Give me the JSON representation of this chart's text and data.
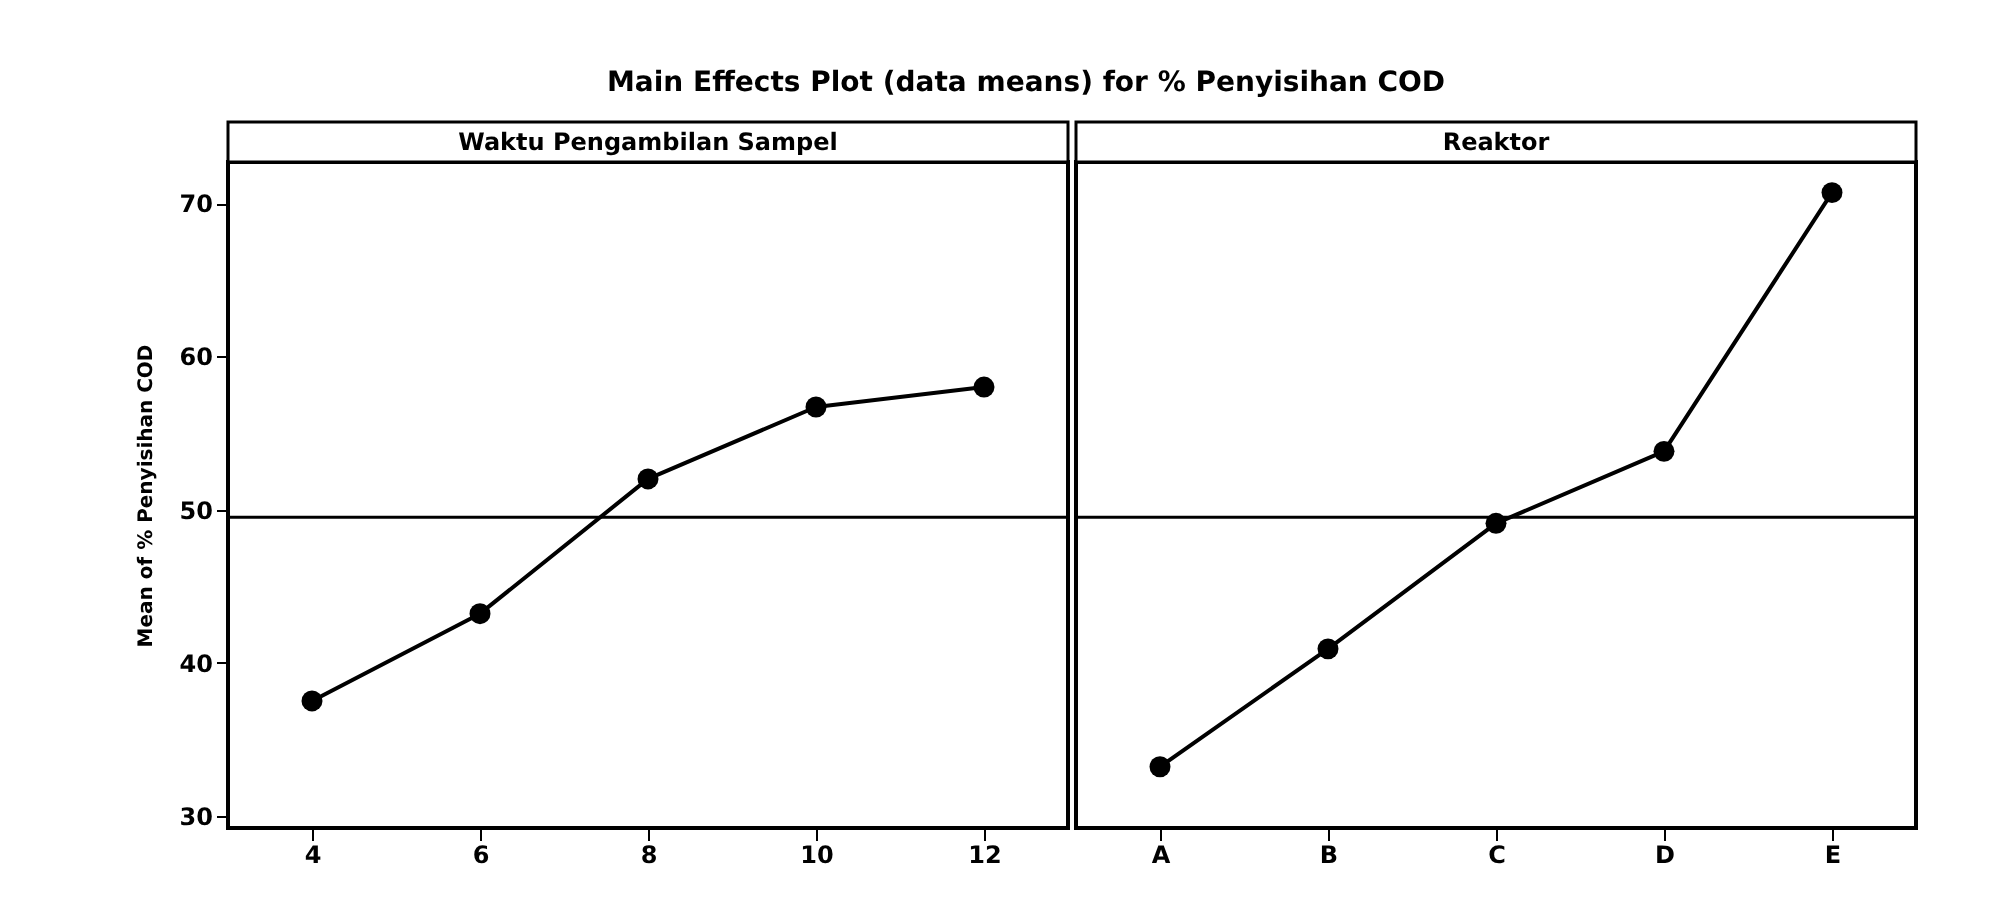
{
  "chart_data": [
    {
      "type": "line",
      "title": "Main Effects Plot (data means) for % Penyisihan COD",
      "xlabel": "Waktu Pengambilan Sampel",
      "ylabel": "Mean of % Penyisihan COD",
      "categories": [
        "4",
        "6",
        "8",
        "10",
        "12"
      ],
      "series": [
        {
          "color": "#000000",
          "values": [
            37.5,
            43.2,
            52.0,
            56.7,
            58.0
          ]
        }
      ],
      "ylim": [
        29.2,
        72.7
      ],
      "yticks": [
        30,
        40,
        50,
        60,
        70
      ],
      "ref_lines": [
        {
          "axis": "y",
          "value": 49.5,
          "color": "#000000"
        }
      ],
      "marker": "circle",
      "line_style": "solid"
    },
    {
      "type": "line",
      "xlabel": "Reaktor",
      "categories": [
        "A",
        "B",
        "C",
        "D",
        "E"
      ],
      "series": [
        {
          "color": "#000000",
          "values": [
            33.2,
            40.9,
            49.1,
            53.8,
            70.7
          ]
        }
      ],
      "ylim": [
        29.2,
        72.7
      ],
      "yticks": [
        30,
        40,
        50,
        60,
        70
      ],
      "tick_labels": "x",
      "ref_lines": [
        {
          "axis": "y",
          "value": 49.5,
          "color": "#000000"
        }
      ],
      "marker": "circle",
      "line_style": "solid"
    }
  ]
}
